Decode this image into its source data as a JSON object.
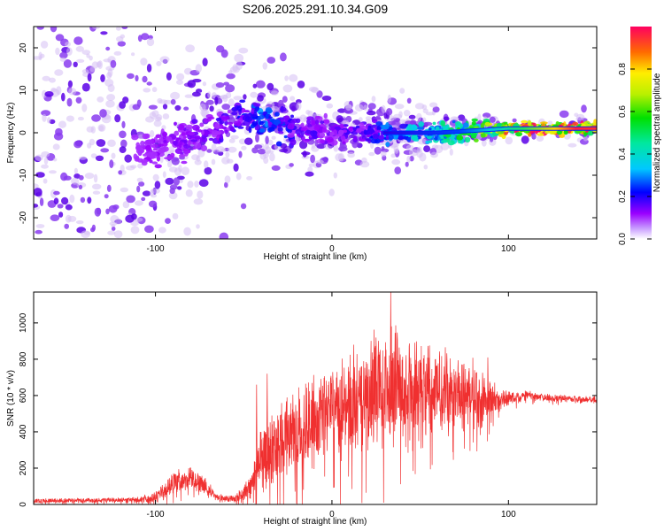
{
  "figure": {
    "title": "S206.2025.291.10.34.G09"
  },
  "colors": {
    "spec_light": "#d6c0f4",
    "spec_mid": "#8a3cf0",
    "spec_dark": "#5a00e8",
    "snr_line": "#f03030"
  },
  "chart_data": [
    {
      "type": "heatmap",
      "title": "S206.2025.291.10.34.G09",
      "xlabel": "Height of straight line (km)",
      "ylabel": "Frequency (Hz)",
      "xlim": [
        -169,
        150
      ],
      "ylim": [
        -25,
        25
      ],
      "xticks": [
        -100,
        0,
        100
      ],
      "xtick_labels": [
        "-100",
        "0",
        "100"
      ],
      "yticks": [
        -20,
        -10,
        0,
        10,
        20
      ],
      "ytick_labels": [
        "-20",
        "-10",
        "0",
        "10",
        "20"
      ],
      "colorbar": {
        "label": "Normalized spectral amplitude",
        "range": [
          0,
          1
        ],
        "ticks": [
          0.0,
          0.2,
          0.4,
          0.6,
          0.8
        ],
        "tick_labels": [
          "0.0",
          "0.2",
          "0.4",
          "0.6",
          "0.8"
        ]
      },
      "ridge": {
        "x": [
          -110,
          -100,
          -80,
          -60,
          -50,
          -40,
          -30,
          -20,
          0,
          20,
          40,
          60,
          80,
          100,
          110,
          150
        ],
        "frequency": [
          -5,
          -4,
          -1,
          2,
          4,
          3,
          2,
          1,
          0,
          0,
          0,
          0,
          0.5,
          1,
          1,
          1
        ],
        "amplitude": [
          0.1,
          0.12,
          0.14,
          0.18,
          0.22,
          0.3,
          0.25,
          0.18,
          0.15,
          0.2,
          0.35,
          0.45,
          0.6,
          0.9,
          1.0,
          0.9
        ]
      }
    },
    {
      "type": "line",
      "xlabel": "Height of straight line (km)",
      "ylabel": "SNR (10 * v/v)",
      "xlim": [
        -169,
        150
      ],
      "ylim": [
        0,
        1170
      ],
      "xticks": [
        -100,
        0,
        100
      ],
      "xtick_labels": [
        "-100",
        "0",
        "100"
      ],
      "yticks": [
        0,
        200,
        400,
        600,
        800,
        1000
      ],
      "ytick_labels": [
        "0",
        "200",
        "400",
        "600",
        "800",
        "1000"
      ],
      "series": [
        {
          "name": "SNR",
          "envelope_x": [
            -169,
            -110,
            -100,
            -90,
            -80,
            -72,
            -65,
            -55,
            -45,
            -40,
            -35,
            -25,
            -15,
            0,
            10,
            20,
            30,
            40,
            50,
            60,
            70,
            80,
            88,
            95,
            100,
            110,
            120,
            130,
            140,
            150
          ],
          "envelope_mean": [
            20,
            25,
            40,
            120,
            150,
            100,
            40,
            30,
            120,
            250,
            320,
            360,
            420,
            520,
            560,
            600,
            640,
            650,
            650,
            640,
            620,
            610,
            580,
            580,
            580,
            600,
            590,
            585,
            580,
            575
          ],
          "envelope_spread": [
            12,
            15,
            30,
            60,
            60,
            50,
            15,
            20,
            80,
            160,
            200,
            220,
            240,
            260,
            280,
            300,
            320,
            280,
            240,
            220,
            200,
            180,
            120,
            60,
            40,
            25,
            20,
            20,
            18,
            18
          ],
          "spike_x": [
            -43,
            -37,
            33,
            12,
            88
          ],
          "spike_y": [
            660,
            720,
            1170,
            880,
            810
          ]
        }
      ]
    }
  ]
}
